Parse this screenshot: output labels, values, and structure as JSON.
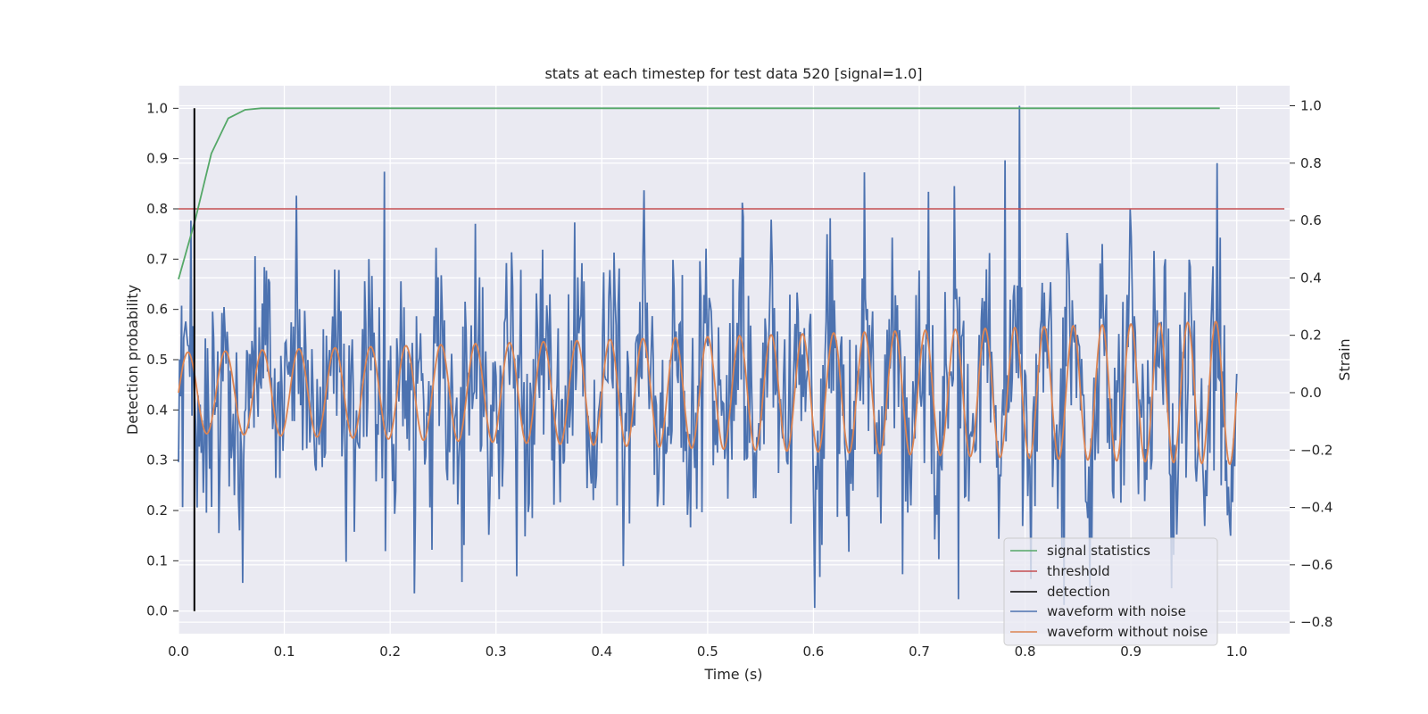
{
  "chart_data": {
    "type": "line",
    "title": "stats at each timestep for test data 520 [signal=1.0]",
    "xlabel": "Time (s)",
    "ylabel_left": "Detection probability",
    "ylabel_right": "Strain",
    "xlim": [
      0.0,
      1.05
    ],
    "ylim_left": [
      -0.045,
      1.045
    ],
    "ylim_right": [
      -0.84,
      1.07
    ],
    "xticks": [
      "0.0",
      "0.1",
      "0.2",
      "0.3",
      "0.4",
      "0.5",
      "0.6",
      "0.7",
      "0.8",
      "0.9",
      "1.0"
    ],
    "yticks_left": [
      "0.0",
      "0.1",
      "0.2",
      "0.3",
      "0.4",
      "0.5",
      "0.6",
      "0.7",
      "0.8",
      "0.9",
      "1.0"
    ],
    "yticks_right": [
      "−0.8",
      "−0.6",
      "−0.4",
      "−0.2",
      "0.0",
      "0.2",
      "0.4",
      "0.6",
      "0.8",
      "1.0"
    ],
    "grid": true,
    "legend_position": "lower-right",
    "colors": {
      "signal_statistics": "#55a868",
      "threshold": "#c44e52",
      "detection": "#000000",
      "waveform_with_noise": "#4c72b0",
      "waveform_without_noise": "#dd8452",
      "plot_background": "#eaeaf2",
      "grid": "#ffffff"
    },
    "series": [
      {
        "name": "signal statistics",
        "axis": "left",
        "x": [
          0.0,
          0.016,
          0.031,
          0.047,
          0.063,
          0.078,
          0.094,
          0.2,
          0.4,
          0.6,
          0.8,
          0.984
        ],
        "y": [
          0.66,
          0.78,
          0.91,
          0.98,
          0.997,
          1.0,
          1.0,
          1.0,
          1.0,
          1.0,
          1.0,
          1.0
        ]
      },
      {
        "name": "threshold",
        "axis": "left",
        "x": [
          0.0,
          1.045
        ],
        "y": [
          0.8,
          0.8
        ]
      },
      {
        "name": "detection",
        "axis": "left",
        "x": [
          0.015,
          0.015
        ],
        "y": [
          0.0,
          1.0
        ]
      },
      {
        "name": "waveform with noise",
        "axis": "right",
        "x_range": [
          0.0,
          1.0
        ],
        "samples": 1024,
        "noise_std": 0.2,
        "extremes": [
          {
            "x": 0.195,
            "y": 0.77
          },
          {
            "x": 0.709,
            "y": 0.7
          },
          {
            "x": 0.781,
            "y": 0.81
          },
          {
            "x": 0.795,
            "y": 1.0
          },
          {
            "x": 0.601,
            "y": -0.75
          },
          {
            "x": 0.737,
            "y": -0.72
          },
          {
            "x": 0.268,
            "y": -0.66
          }
        ]
      },
      {
        "name": "waveform without noise",
        "axis": "right",
        "x_range": [
          0.0,
          1.0
        ],
        "amplitude_start": 0.14,
        "amplitude_end": 0.25,
        "frequency_start_hz": 28,
        "frequency_end_hz": 38,
        "offset": 0.0
      }
    ],
    "legend": [
      "signal statistics",
      "threshold",
      "detection",
      "waveform with noise",
      "waveform without noise"
    ]
  }
}
